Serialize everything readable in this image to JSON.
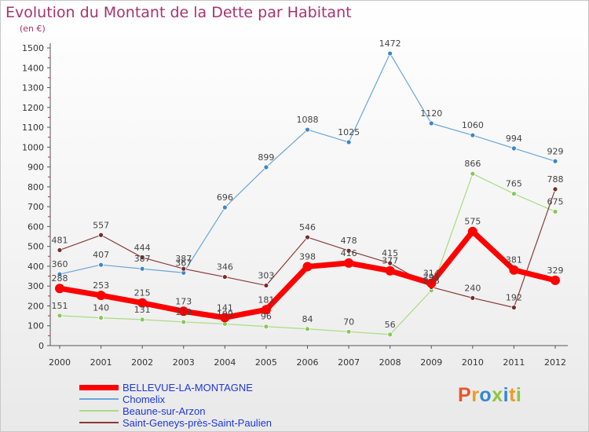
{
  "title": "Evolution du Montant de la Dette par Habitant",
  "subtitle": "(en €)",
  "logo": {
    "text": "Proxiti",
    "colors": [
      "#e8562a",
      "#f29a1f",
      "#2f88d6",
      "#8cc63f",
      "#2f88d6",
      "#f29a1f",
      "#8cc63f"
    ]
  },
  "chart_data": {
    "type": "line",
    "x": [
      "2000",
      "2001",
      "2002",
      "2003",
      "2004",
      "2005",
      "2006",
      "2007",
      "2008",
      "2009",
      "2010",
      "2011",
      "2012"
    ],
    "ylim": [
      0,
      1500
    ],
    "yticks": [
      0,
      100,
      200,
      300,
      400,
      500,
      600,
      700,
      800,
      900,
      1000,
      1100,
      1200,
      1300,
      1400,
      1500
    ],
    "grid": false,
    "legend_position": "bottom-left",
    "series": [
      {
        "name": "Chomelix",
        "color": "#6aa5d8",
        "point_color": "#3f86c9",
        "width": 1.2,
        "values": [
          360,
          407,
          387,
          367,
          696,
          899,
          1088,
          1025,
          1472,
          1120,
          1060,
          994,
          929
        ],
        "labels": [
          "360",
          "407",
          "387",
          "367",
          "696",
          "899",
          "1088",
          "1025",
          "1472",
          "1120",
          "1060",
          "994",
          "929"
        ]
      },
      {
        "name": "Beaune-sur-Arzon",
        "color": "#a9dc82",
        "point_color": "#86c95a",
        "width": 1.2,
        "values": [
          151,
          140,
          131,
          119,
          109,
          96,
          84,
          70,
          56,
          278,
          866,
          765,
          675
        ],
        "labels": [
          "151",
          "140",
          "131",
          "119",
          "109",
          "96",
          "84",
          "70",
          "56",
          "278",
          "866",
          "765",
          "675"
        ]
      },
      {
        "name": "Saint-Geneys-près-Saint-Paulien",
        "color": "#8a3a3a",
        "point_color": "#7a2a2a",
        "width": 1.2,
        "values": [
          481,
          557,
          444,
          387,
          346,
          303,
          546,
          478,
          415,
          295,
          240,
          192,
          788
        ],
        "labels": [
          "481",
          "557",
          "444",
          "387",
          "346",
          "303",
          "546",
          "478",
          "415",
          "295",
          "240",
          "192",
          "788"
        ]
      },
      {
        "name": "BELLEVUE-LA-MONTAGNE",
        "color": "#ff0000",
        "point_color": "#ff0000",
        "width": 7,
        "values": [
          288,
          253,
          215,
          173,
          141,
          181,
          398,
          416,
          377,
          314,
          575,
          381,
          329
        ],
        "labels": [
          "288",
          "253",
          "215",
          "173",
          "141",
          "181",
          "398",
          "416",
          "377",
          "314",
          "575",
          "381",
          "329"
        ]
      }
    ]
  },
  "legend": [
    {
      "label": "BELLEVUE-LA-MONTAGNE",
      "color": "#ff0000",
      "width": 7
    },
    {
      "label": "Chomelix",
      "color": "#6aa5d8",
      "width": 1.5
    },
    {
      "label": "Beaune-sur-Arzon",
      "color": "#a9dc82",
      "width": 1.5
    },
    {
      "label": "Saint-Geneys-près-Saint-Paulien",
      "color": "#8a3a3a",
      "width": 1.5
    }
  ]
}
